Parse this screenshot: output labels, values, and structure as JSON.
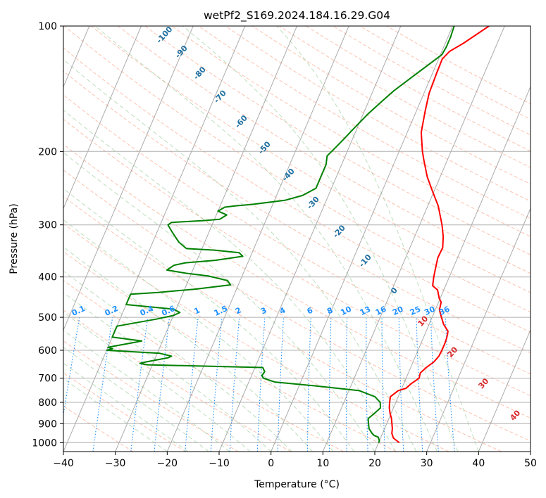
{
  "chart_data": {
    "type": "line",
    "title": "wetPf2_S169.2024.184.16.29.G04",
    "xlabel": "Temperature (°C)",
    "ylabel": "Pressure (hPa)",
    "xlim": [
      -40,
      50
    ],
    "ylim": [
      1050,
      100
    ],
    "y_scale": "log",
    "grid": true,
    "x_ticks": [
      -40,
      -30,
      -20,
      -10,
      0,
      10,
      20,
      30,
      40,
      50
    ],
    "y_ticks": [
      1000,
      900,
      800,
      700,
      600,
      500,
      400,
      300,
      200,
      100
    ],
    "series": [
      {
        "color": "#ff0000",
        "points": [
          [
            24.0,
            1000
          ],
          [
            22.5,
            975
          ],
          [
            21.8,
            950
          ],
          [
            21.5,
            925
          ],
          [
            21.0,
            900
          ],
          [
            20.5,
            875
          ],
          [
            19.8,
            850
          ],
          [
            19.2,
            825
          ],
          [
            18.8,
            800
          ],
          [
            18.5,
            775
          ],
          [
            19.5,
            750
          ],
          [
            20.8,
            740
          ],
          [
            21.5,
            720
          ],
          [
            22.5,
            700
          ],
          [
            22.3,
            680
          ],
          [
            23.0,
            660
          ],
          [
            24.0,
            640
          ],
          [
            24.5,
            620
          ],
          [
            24.6,
            600
          ],
          [
            24.6,
            580
          ],
          [
            24.5,
            560
          ],
          [
            24.2,
            540
          ],
          [
            22.8,
            520
          ],
          [
            21.8,
            500
          ],
          [
            20.8,
            480
          ],
          [
            20.5,
            460
          ],
          [
            19.8,
            450
          ],
          [
            18.8,
            430
          ],
          [
            17.5,
            420
          ],
          [
            17.0,
            400
          ],
          [
            16.6,
            380
          ],
          [
            16.2,
            360
          ],
          [
            16.3,
            340
          ],
          [
            15.5,
            320
          ],
          [
            14.3,
            300
          ],
          [
            12.0,
            270
          ],
          [
            9.8,
            250
          ],
          [
            7.5,
            230
          ],
          [
            5.5,
            210
          ],
          [
            4.5,
            200
          ],
          [
            2.7,
            180
          ],
          [
            1.7,
            160
          ],
          [
            1.0,
            145
          ],
          [
            0.8,
            130
          ],
          [
            0.7,
            120
          ],
          [
            1.5,
            115
          ],
          [
            3.5,
            110
          ],
          [
            7.0,
            100
          ]
        ]
      },
      {
        "color": "#008000",
        "points": [
          [
            20.0,
            1000
          ],
          [
            20.0,
            990
          ],
          [
            19.5,
            970
          ],
          [
            18.5,
            960
          ],
          [
            18.0,
            950
          ],
          [
            17.0,
            925
          ],
          [
            16.5,
            900
          ],
          [
            16.0,
            875
          ],
          [
            16.8,
            850
          ],
          [
            17.5,
            825
          ],
          [
            17.0,
            800
          ],
          [
            15.5,
            775
          ],
          [
            12.0,
            750
          ],
          [
            3.0,
            730
          ],
          [
            -5.0,
            715
          ],
          [
            -7.5,
            700
          ],
          [
            -8.0,
            690
          ],
          [
            -7.8,
            675
          ],
          [
            -8.5,
            660
          ],
          [
            -15.0,
            657
          ],
          [
            -31.0,
            650
          ],
          [
            -32.5,
            645
          ],
          [
            -31.5,
            640
          ],
          [
            -27.5,
            625
          ],
          [
            -27.0,
            620
          ],
          [
            -29.5,
            610
          ],
          [
            -40.0,
            600
          ],
          [
            -39.0,
            595
          ],
          [
            -40.0,
            590
          ],
          [
            -38.5,
            585
          ],
          [
            -35.5,
            575
          ],
          [
            -34.0,
            570
          ],
          [
            -40.0,
            558
          ],
          [
            -40.0,
            540
          ],
          [
            -40.0,
            525
          ],
          [
            -33.0,
            505
          ],
          [
            -30.0,
            495
          ],
          [
            -29.0,
            487
          ],
          [
            -30.5,
            478
          ],
          [
            -40.0,
            466
          ],
          [
            -40.0,
            455
          ],
          [
            -40.0,
            440
          ],
          [
            -35.0,
            436
          ],
          [
            -28.0,
            428
          ],
          [
            -21.5,
            418
          ],
          [
            -22.5,
            408
          ],
          [
            -26.5,
            398
          ],
          [
            -31.0,
            392
          ],
          [
            -35.0,
            385
          ],
          [
            -34.0,
            375
          ],
          [
            -32.0,
            370
          ],
          [
            -26.5,
            365
          ],
          [
            -21.5,
            357
          ],
          [
            -22.5,
            350
          ],
          [
            -27.5,
            345
          ],
          [
            -33.0,
            342
          ],
          [
            -35.0,
            330
          ],
          [
            -37.0,
            313
          ],
          [
            -38.5,
            300
          ],
          [
            -38.0,
            296
          ],
          [
            -32.0,
            293
          ],
          [
            -29.0,
            291
          ],
          [
            -28.0,
            284
          ],
          [
            -30.0,
            278
          ],
          [
            -29.0,
            272
          ],
          [
            -27.0,
            270
          ],
          [
            -24.0,
            268
          ],
          [
            -18.0,
            262
          ],
          [
            -15.0,
            255
          ],
          [
            -13.0,
            245
          ],
          [
            -13.0,
            230
          ],
          [
            -13.0,
            215
          ],
          [
            -13.5,
            205
          ],
          [
            -12.5,
            195
          ],
          [
            -11.5,
            185
          ],
          [
            -10.5,
            175
          ],
          [
            -9.0,
            162
          ],
          [
            -7.5,
            152
          ],
          [
            -6.0,
            143
          ],
          [
            -3.5,
            132
          ],
          [
            -1.0,
            122
          ],
          [
            0.3,
            117
          ],
          [
            0.5,
            112
          ],
          [
            0.5,
            106
          ],
          [
            0.3,
            100
          ]
        ]
      }
    ],
    "dry_adiabat_labels": [
      "-100",
      "-90",
      "-80",
      "-70",
      "-60",
      "-50",
      "-40",
      "-30",
      "-20",
      "-10",
      "0",
      "10",
      "20",
      "30",
      "40"
    ],
    "mixing_ratio_labels": [
      "0.1",
      "0.2",
      "0.4",
      "0.6",
      "1",
      "1.5",
      "2",
      "3",
      "4",
      "6",
      "8",
      "10",
      "13",
      "16",
      "20",
      "25",
      "30",
      "36"
    ],
    "colors": {
      "temperature": "#ff0000",
      "dewpoint": "#008000",
      "dry_adiabat_label_blue": "#1f6fa0",
      "dry_adiabat_label_red": "#d62728",
      "mixing_ratio": "#1e90ff",
      "dry_adiabats": "#fa8f6e",
      "moist_adiabats": "#90c890",
      "isotherms": "#888888",
      "grid": "#b0b0b0"
    }
  }
}
